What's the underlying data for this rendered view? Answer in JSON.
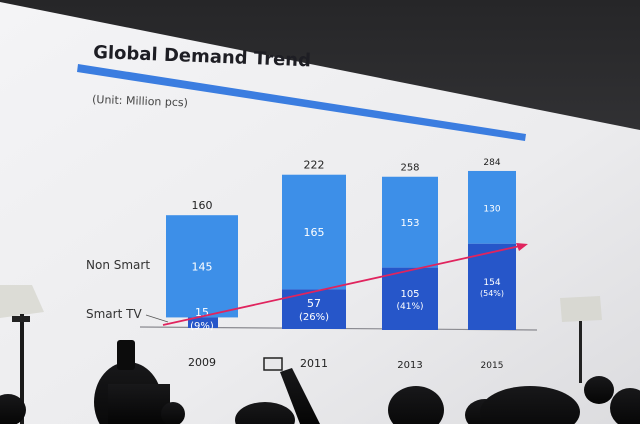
{
  "slide": {
    "title": "Global Demand Trend",
    "unit": "(Unit: Million pcs)"
  },
  "colors": {
    "non_smart": "#3d8fe8",
    "smart": "#2656c9",
    "trend": "#e0245e",
    "title_bar": "#3b7de0"
  },
  "chart_data": {
    "type": "bar",
    "stacked": true,
    "title": "Global Demand Trend",
    "subtitle": "(Unit: Million pcs)",
    "categories": [
      "2009",
      "2011",
      "2013",
      "2015"
    ],
    "totals": [
      160,
      222,
      258,
      284
    ],
    "series": [
      {
        "name": "Smart TV",
        "values": [
          15,
          57,
          105,
          154
        ],
        "labels": [
          "(9%)",
          "(26%)",
          "(41%)",
          "(54%)"
        ]
      },
      {
        "name": "Non Smart",
        "values": [
          145,
          165,
          153,
          130
        ]
      }
    ],
    "ylim": [
      0,
      300
    ],
    "grid": false,
    "annotations": [
      "trend-arrow"
    ]
  }
}
